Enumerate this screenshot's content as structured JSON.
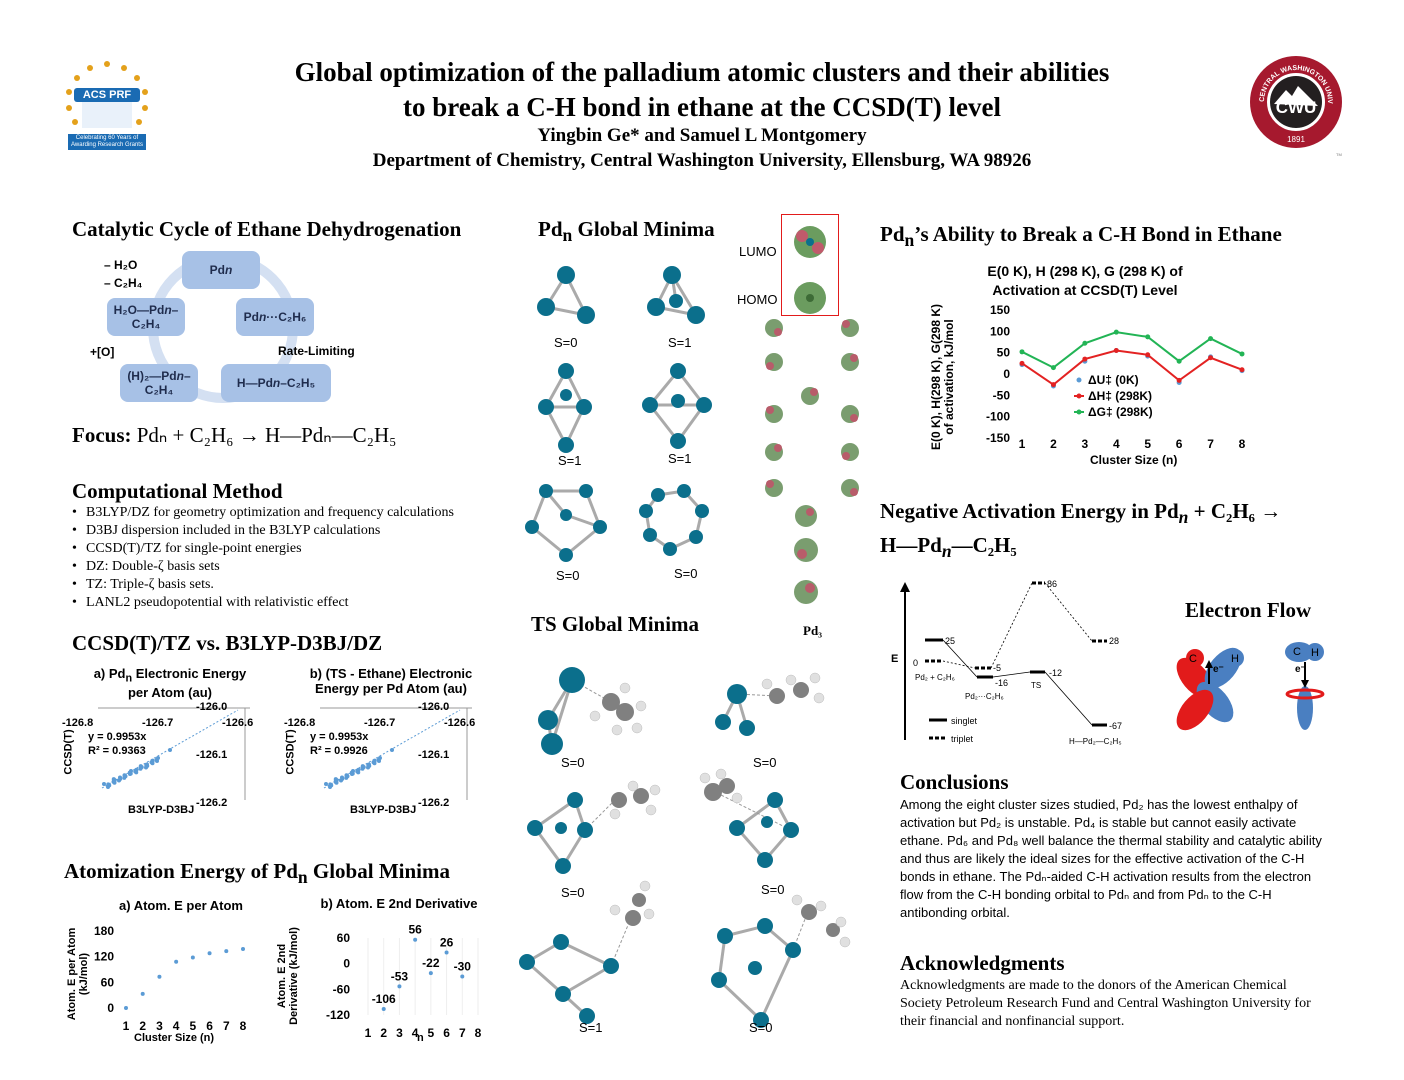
{
  "header": {
    "title_line1": "Global optimization of the palladium atomic clusters and their abilities",
    "title_line2": "to break a C-H bond in ethane at the CCSD(T) level",
    "authors": "Yingbin Ge* and Samuel L Montgomery",
    "affiliation": "Department of Chemistry, Central Washington University, Ellensburg, WA 98926",
    "left_logo": {
      "text_main": "ACS PRF",
      "tagline": "Celebrating 60 Years of Awarding Research Grants"
    },
    "right_logo": {
      "ring_text": "CENTRAL WASHINGTON UNIVERSITY",
      "center": "CWU",
      "year": "1891",
      "tm": "TM"
    }
  },
  "catalytic": {
    "title": "Catalytic Cycle of Ethane Dehydrogenation",
    "boxes": [
      "Pd",
      "Pd",
      "H—Pd",
      "(H)₂—Pd",
      "H₂O—Pd"
    ],
    "box_pdn": "n",
    "box2_tail": "···C₂H₆",
    "box3_tail": "–C₂H₅",
    "box4_tail": "–C₂H₄",
    "box5_tail": "–C₂H₄",
    "label_h2o": "– H₂O",
    "label_c2h4": "– C₂H₄",
    "label_o": "+[O]",
    "label_rate": "Rate-Limiting",
    "focus_label": "Focus:",
    "focus_eq": "Pdₙ + C₂H₆ → H—Pdₙ—C₂H₅"
  },
  "method": {
    "title": "Computational Method",
    "items": [
      "B3LYP/DZ for geometry optimization and frequency calculations",
      "D3BJ dispersion included in the B3LYP calculations",
      "CCSD(T)/TZ for single-point energies",
      "DZ: Double-ζ basis sets",
      "TZ: Triple-ζ basis sets.",
      "LANL2 pseudopotential with relativistic effect"
    ]
  },
  "ccsd": {
    "title": "CCSD(T)/TZ vs. B3LYP-D3BJ/DZ",
    "chart_a_title_1": "a) Pd",
    "chart_a_title_n": "n",
    "chart_a_title_2": " Electronic Energy",
    "chart_a_title_3": "per Atom (au)",
    "chart_b_title_1": "b) (TS - Ethane) Electronic",
    "chart_b_title_2": "Energy per Pd Atom (au)",
    "eq_a1": "y = 0.9953x",
    "eq_a2": "R² = 0.9363",
    "eq_b1": "y = 0.9953x",
    "eq_b2": "R² = 0.9926",
    "ylabel": "CCSD(T)",
    "xlabel": "B3LYP-D3BJ",
    "xticks": [
      "-126.8",
      "-126.7",
      "-126.6"
    ],
    "yticks": [
      "-126.0",
      "-126.1",
      "-126.2"
    ]
  },
  "atomization": {
    "title_1": "Atomization Energy of Pd",
    "title_n": "n",
    "title_2": " Global Minima",
    "a_title": "a) Atom. E per Atom",
    "b_title": "b) Atom. E 2nd Derivative",
    "a_ylabel_1": "Atom. E per Atom",
    "a_ylabel_2": "(kJ/mol)",
    "a_xlabel": "Cluster Size (n)",
    "b_ylabel_1": "Atom. E 2nd",
    "b_ylabel_2": "Derivative (kJ/mol)",
    "b_xlabel": "n"
  },
  "pdn_minima": {
    "title_1": "Pd",
    "title_n": "n",
    "title_2": " Global Minima",
    "spins": [
      "S=0",
      "S=1",
      "S=1",
      "S=1",
      "S=0",
      "S=0"
    ],
    "lumo": "LUMO",
    "homo": "HOMO",
    "pd3": "Pd₃"
  },
  "ts_minima": {
    "title": "TS Global Minima",
    "spins": [
      "S=0",
      "S=0",
      "S=0",
      "S=0",
      "S=1",
      "S=0"
    ]
  },
  "ability": {
    "title_1": "Pd",
    "title_n": "n",
    "title_2": "’s Ability to Break a C-H Bond in Ethane",
    "chart_title_1": "E(0 K), H (298 K), G (298 K) of",
    "chart_title_2": "Activation at CCSD(T) Level",
    "ylabel_1": "E(0 K), H(298 K), G(298 K)",
    "ylabel_2": "of activation, kJ/mol",
    "xlabel": "Cluster Size (n)"
  },
  "negative": {
    "title_1": "Negative Activation Energy in Pd",
    "title_n": "n",
    "title_2": " + C₂H₆ →",
    "title_3": "H—Pd",
    "title_4": "—C₂H₅",
    "e_axis": "E",
    "levels": {
      "start": "0",
      "start_label": "Pd₂ + C₂H₆",
      "e25": "25",
      "em5": "-5",
      "em16": "-16",
      "complex_label": "Pd₂···C₂H₆",
      "e86": "86",
      "em12": "-12",
      "ts_label": "TS",
      "e28": "28",
      "em67": "-67",
      "product_label": "H—Pd₂—C₂H₅"
    },
    "legend_singlet": "singlet",
    "legend_triplet": "triplet",
    "flow_title": "Electron Flow",
    "flow_c": "C",
    "flow_h": "H",
    "flow_e": "e⁻"
  },
  "conclusions": {
    "title": "Conclusions",
    "text": "Among the eight cluster sizes studied, Pd₂ has the lowest enthalpy of activation but Pd₂ is unstable. Pd₄ is stable but cannot easily activate ethane. Pd₆ and Pd₈ well balance the thermal stability and catalytic ability and thus are likely the ideal sizes for the effective activation of the C-H bonds in ethane. The Pdₙ-aided C-H activation results from the electron flow from the C-H bonding orbital to Pdₙ and from Pdₙ to the C-H antibonding orbital."
  },
  "acknowledgments": {
    "title": "Acknowledgments",
    "text": "Acknowledgments are made to the donors of the American Chemical Society Petroleum Research Fund and Central Washington University for their financial and nonfinancial support."
  },
  "colors": {
    "pd": "#0b6f8c",
    "box": "#a7c1e6",
    "series_u": "#5b9bd5",
    "series_h": "#e32222",
    "series_g": "#22b455",
    "cwu_red": "#a6192e"
  },
  "chart_data": [
    {
      "type": "line",
      "title": "E(0 K), H (298 K), G (298 K) of Activation at CCSD(T) Level",
      "xlabel": "Cluster Size (n)",
      "ylabel": "E(0 K), H(298 K), G(298 K) of activation, kJ/mol",
      "x": [
        1,
        2,
        3,
        4,
        5,
        6,
        7,
        8
      ],
      "ylim": [
        -150,
        150
      ],
      "yticks": [
        150,
        100,
        50,
        0,
        -50,
        -100,
        -150
      ],
      "legend": "bottom-left",
      "series": [
        {
          "name": "ΔU‡ (0K)",
          "color": "#5b9bd5",
          "style": "dots",
          "values": [
            22,
            -28,
            30,
            55,
            42,
            -20,
            40,
            8
          ]
        },
        {
          "name": "ΔH‡ (298K)",
          "color": "#e32222",
          "style": "line",
          "values": [
            25,
            -25,
            35,
            55,
            45,
            -15,
            38,
            10
          ]
        },
        {
          "name": "ΔG‡ (298K)",
          "color": "#22b455",
          "style": "line",
          "values": [
            52,
            15,
            72,
            98,
            87,
            30,
            83,
            47
          ]
        }
      ]
    },
    {
      "type": "scatter",
      "title": "a) Atom. E per Atom",
      "xlabel": "Cluster Size (n)",
      "ylabel": "Atom. E per Atom (kJ/mol)",
      "x": [
        1,
        2,
        3,
        4,
        5,
        6,
        7,
        8
      ],
      "values": [
        0,
        33,
        73,
        108,
        118,
        128,
        133,
        138
      ],
      "ylim": [
        0,
        180
      ],
      "yticks": [
        0,
        60,
        120,
        180
      ]
    },
    {
      "type": "scatter",
      "title": "b) Atom. E 2nd Derivative",
      "xlabel": "n",
      "ylabel": "Atom. E 2nd Derivative (kJ/mol)",
      "x": [
        2,
        3,
        4,
        5,
        6,
        7
      ],
      "values": [
        -106,
        -53,
        56,
        -22,
        26,
        -30
      ],
      "data_labels": [
        "-106",
        "-53",
        "56",
        "-22",
        "26",
        "-30"
      ],
      "ylim": [
        -120,
        60
      ],
      "yticks": [
        60,
        0,
        -60,
        -120
      ],
      "xticks": [
        1,
        2,
        3,
        4,
        5,
        6,
        7,
        8
      ]
    }
  ]
}
